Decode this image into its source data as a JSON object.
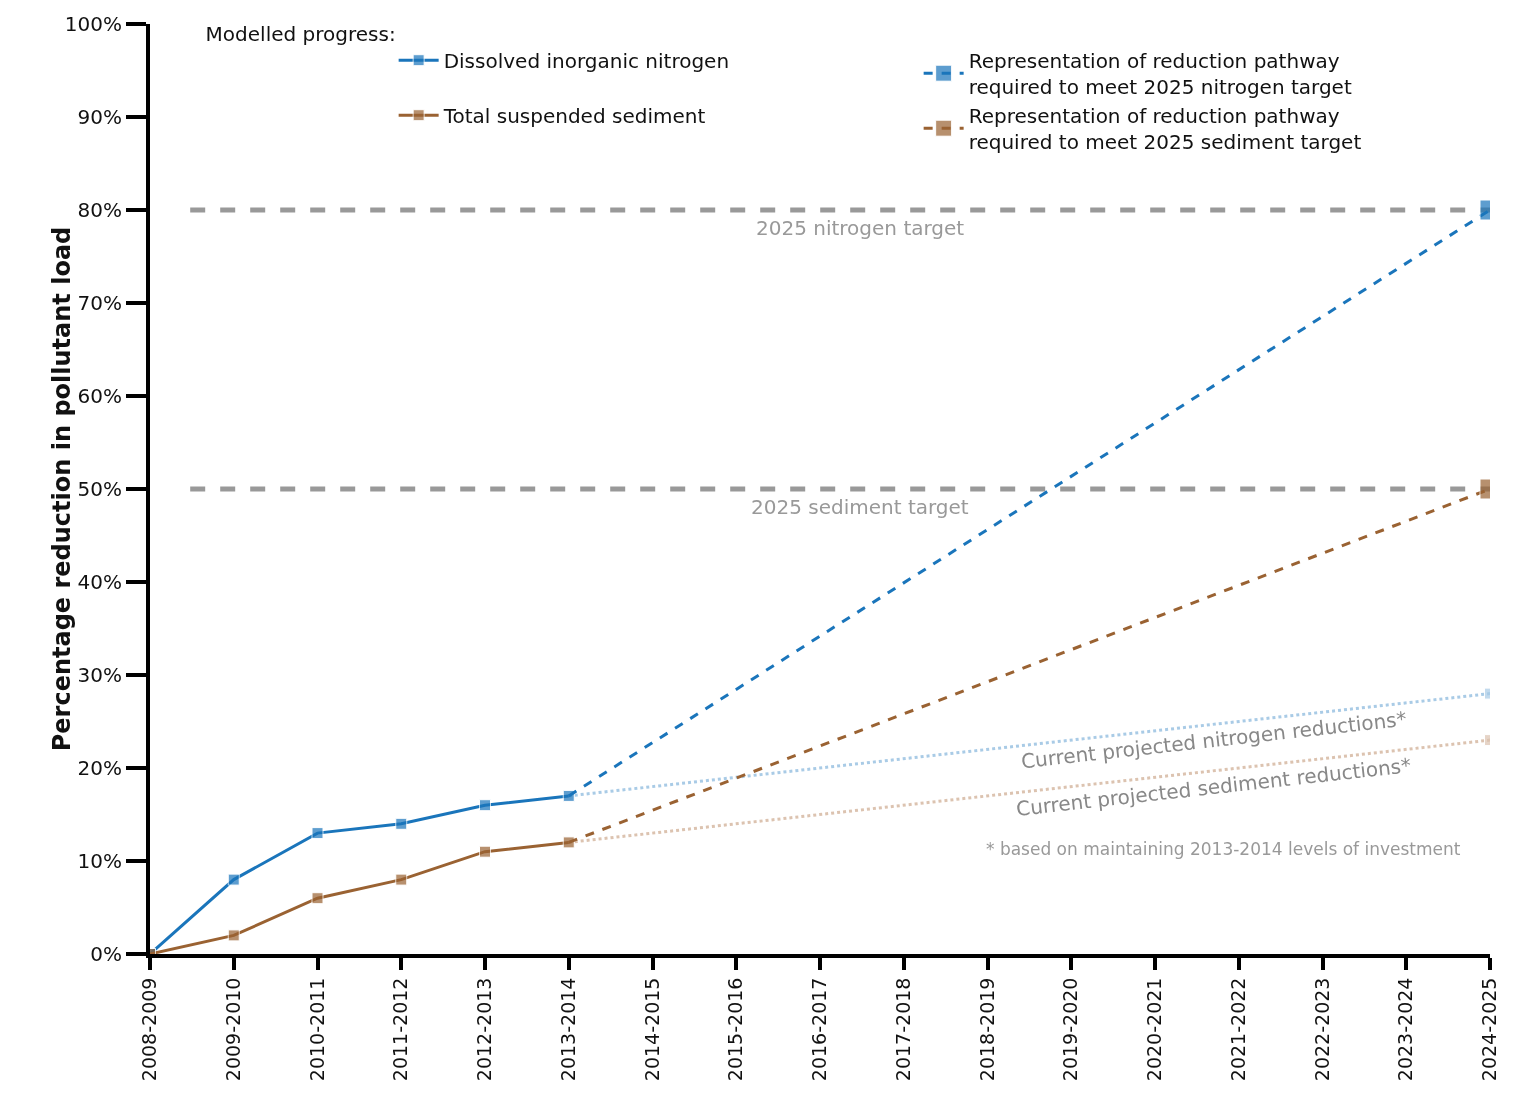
{
  "chart_data": {
    "type": "line",
    "ylabel": "Percentage reduction in pollutant load",
    "legend_title": "Modelled progress:",
    "categories": [
      "2008-2009",
      "2009-2010",
      "2010-2011",
      "2011-2012",
      "2012-2013",
      "2013-2014",
      "2014-2015",
      "2015-2016",
      "2016-2017",
      "2017-2018",
      "2018-2019",
      "2019-2020",
      "2020-2021",
      "2021-2022",
      "2022-2023",
      "2023-2024",
      "2024-2025"
    ],
    "series": [
      {
        "name": "Current projected nitrogen reductions*",
        "color": "#a9cbe6",
        "line_style": "dotted",
        "values": [
          null,
          null,
          null,
          null,
          null,
          17,
          null,
          null,
          null,
          null,
          null,
          null,
          null,
          null,
          null,
          null,
          28
        ]
      },
      {
        "name": "Current projected sediment reductions*",
        "color": "#dcc3b0",
        "line_style": "dotted",
        "values": [
          null,
          null,
          null,
          null,
          null,
          12,
          null,
          null,
          null,
          null,
          null,
          null,
          null,
          null,
          null,
          null,
          23
        ]
      },
      {
        "name": "Dissolved inorganic nitrogen",
        "color": "#1a75bb",
        "line_style": "solid",
        "values": [
          0,
          8,
          13,
          14,
          16,
          17,
          null,
          null,
          null,
          null,
          null,
          null,
          null,
          null,
          null,
          null,
          null
        ]
      },
      {
        "name": "Representation of reduction pathway\nrequired to meet 2025 nitrogen target",
        "color": "#1a75bb",
        "line_style": "dashed",
        "values": [
          null,
          null,
          null,
          null,
          null,
          17,
          null,
          null,
          null,
          null,
          null,
          null,
          null,
          null,
          null,
          null,
          80
        ]
      },
      {
        "name": "Total suspended sediment",
        "color": "#9a6232",
        "line_style": "solid",
        "values": [
          0,
          2,
          6,
          8,
          11,
          12,
          null,
          null,
          null,
          null,
          null,
          null,
          null,
          null,
          null,
          null,
          null
        ]
      },
      {
        "name": "Representation of reduction pathway\nrequired to meet 2025 sediment target",
        "color": "#9a6232",
        "line_style": "dashed",
        "values": [
          null,
          null,
          null,
          null,
          null,
          12,
          null,
          null,
          null,
          null,
          null,
          null,
          null,
          null,
          null,
          null,
          50
        ]
      }
    ],
    "ylim": [
      0,
      100
    ],
    "yticks": [
      {
        "value": 0,
        "label": "0%"
      },
      {
        "value": 10,
        "label": "10%"
      },
      {
        "value": 20,
        "label": "20%"
      },
      {
        "value": 30,
        "label": "30%"
      },
      {
        "value": 40,
        "label": "40%"
      },
      {
        "value": 50,
        "label": "50%"
      },
      {
        "value": 60,
        "label": "60%"
      },
      {
        "value": 70,
        "label": "70%"
      },
      {
        "value": 80,
        "label": "80%"
      },
      {
        "value": 90,
        "label": "90%"
      },
      {
        "value": 100,
        "label": "100%"
      }
    ],
    "ref_lines": [
      {
        "axis": "y",
        "value": 80,
        "label": "2025 nitrogen target",
        "color": "#999999",
        "line_style": "dashed"
      },
      {
        "axis": "y",
        "value": 50,
        "label": "2025 sediment target",
        "color": "#999999",
        "line_style": "dashed"
      }
    ],
    "annotations": [
      "* based on maintaining 2013-2014 levels of investment"
    ],
    "grid": false,
    "legend": "top",
    "marker": "square"
  }
}
